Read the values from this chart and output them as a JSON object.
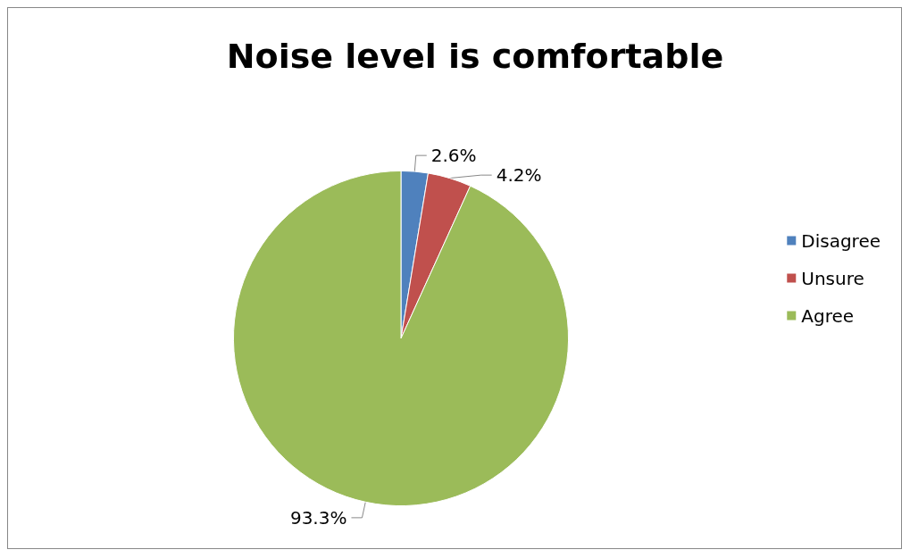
{
  "chart_data": {
    "type": "pie",
    "title": "Noise level is comfortable",
    "categories": [
      "Disagree",
      "Unsure",
      "Agree"
    ],
    "values": [
      2.6,
      4.2,
      93.3
    ],
    "colors": [
      "#4f81bd",
      "#c0504d",
      "#9bbb59"
    ],
    "value_labels": [
      "2.6%",
      "4.2%",
      "93.3%"
    ],
    "legend": "right"
  }
}
